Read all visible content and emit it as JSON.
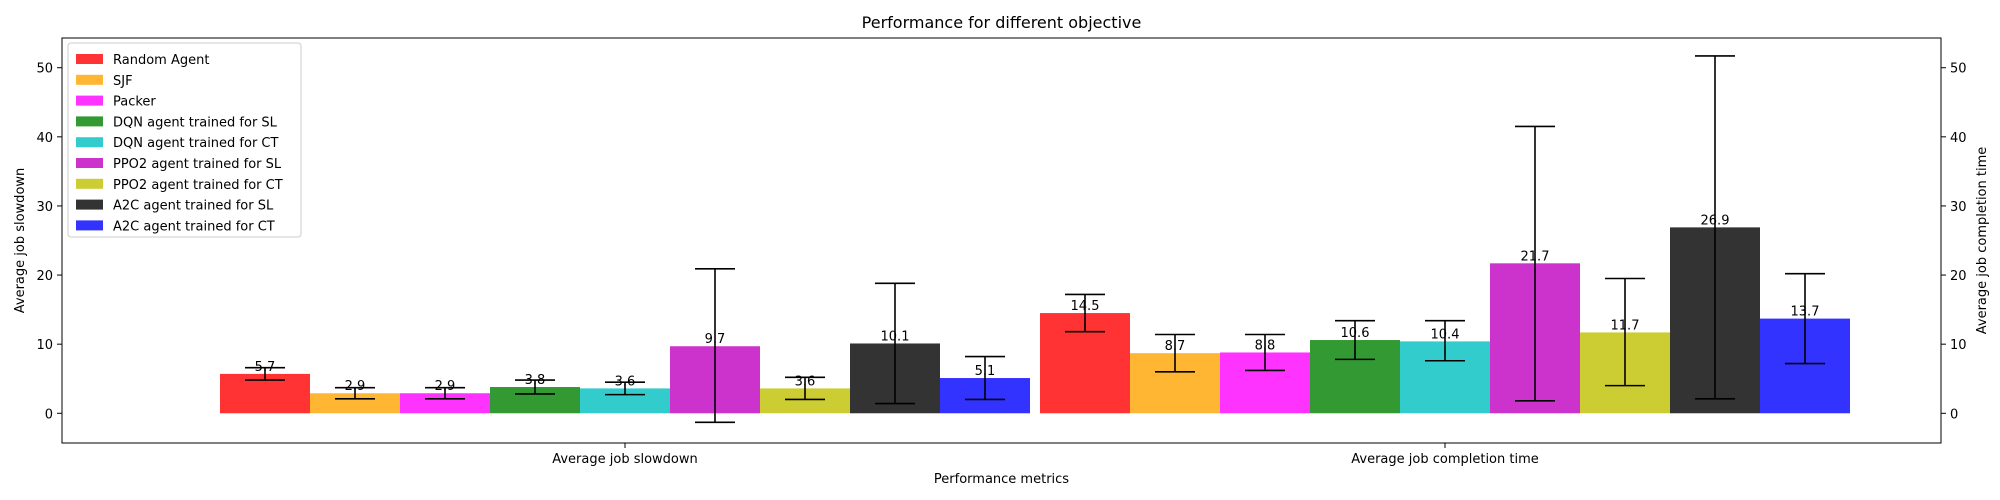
{
  "chart_data": {
    "type": "bar",
    "title": "Performance for different objective",
    "xlabel": "Performance metrics",
    "ylabel": "Average job slowdown",
    "ylabel_right": "Average job completion time",
    "categories": [
      "Average job slowdown",
      "Average job completion time"
    ],
    "ylim": [
      -4.3,
      54.3
    ],
    "yticks": [
      0,
      10,
      20,
      30,
      40,
      50
    ],
    "grid": false,
    "legend_position": "top-left",
    "series": [
      {
        "name": "Random Agent",
        "color": "#ff0000",
        "values": [
          5.7,
          14.5
        ],
        "labels": [
          "5.7",
          "14.5"
        ],
        "err_low": [
          4.8,
          11.8
        ],
        "err_high": [
          6.6,
          17.2
        ]
      },
      {
        "name": "SJF",
        "color": "#ffa500",
        "values": [
          2.9,
          8.7
        ],
        "labels": [
          "2.9",
          "8.7"
        ],
        "err_low": [
          2.1,
          6.0
        ],
        "err_high": [
          3.7,
          11.4
        ]
      },
      {
        "name": "Packer",
        "color": "#ff00ff",
        "values": [
          2.9,
          8.8
        ],
        "labels": [
          "2.9",
          "8.8"
        ],
        "err_low": [
          2.1,
          6.2
        ],
        "err_high": [
          3.7,
          11.4
        ]
      },
      {
        "name": "DQN agent trained for SL",
        "color": "#008000",
        "values": [
          3.8,
          10.6
        ],
        "labels": [
          "3.8",
          "10.6"
        ],
        "err_low": [
          2.8,
          7.8
        ],
        "err_high": [
          4.8,
          13.4
        ]
      },
      {
        "name": "DQN agent trained for CT",
        "color": "#00bfbf",
        "values": [
          3.6,
          10.4
        ],
        "labels": [
          "3.6",
          "10.4"
        ],
        "err_low": [
          2.7,
          7.6
        ],
        "err_high": [
          4.5,
          13.4
        ]
      },
      {
        "name": "PPO2 agent trained for SL",
        "color": "#bf00bf",
        "values": [
          9.7,
          21.7
        ],
        "labels": [
          "9.7",
          "21.7"
        ],
        "err_low": [
          -1.3,
          1.8
        ],
        "err_high": [
          20.9,
          41.5
        ]
      },
      {
        "name": "PPO2 agent trained for CT",
        "color": "#bfbf00",
        "values": [
          3.6,
          11.7
        ],
        "labels": [
          "3.6",
          "11.7"
        ],
        "err_low": [
          2.0,
          4.0
        ],
        "err_high": [
          5.2,
          19.5
        ]
      },
      {
        "name": "A2C agent trained for SL",
        "color": "#000000",
        "values": [
          10.1,
          26.9
        ],
        "labels": [
          "10.1",
          "26.9"
        ],
        "err_low": [
          1.4,
          2.1
        ],
        "err_high": [
          18.8,
          51.7
        ]
      },
      {
        "name": "A2C agent trained for CT",
        "color": "#0000ff",
        "values": [
          5.1,
          13.7
        ],
        "labels": [
          "5.1",
          "13.7"
        ],
        "err_low": [
          2.0,
          7.2
        ],
        "err_high": [
          8.2,
          20.2
        ]
      }
    ]
  }
}
